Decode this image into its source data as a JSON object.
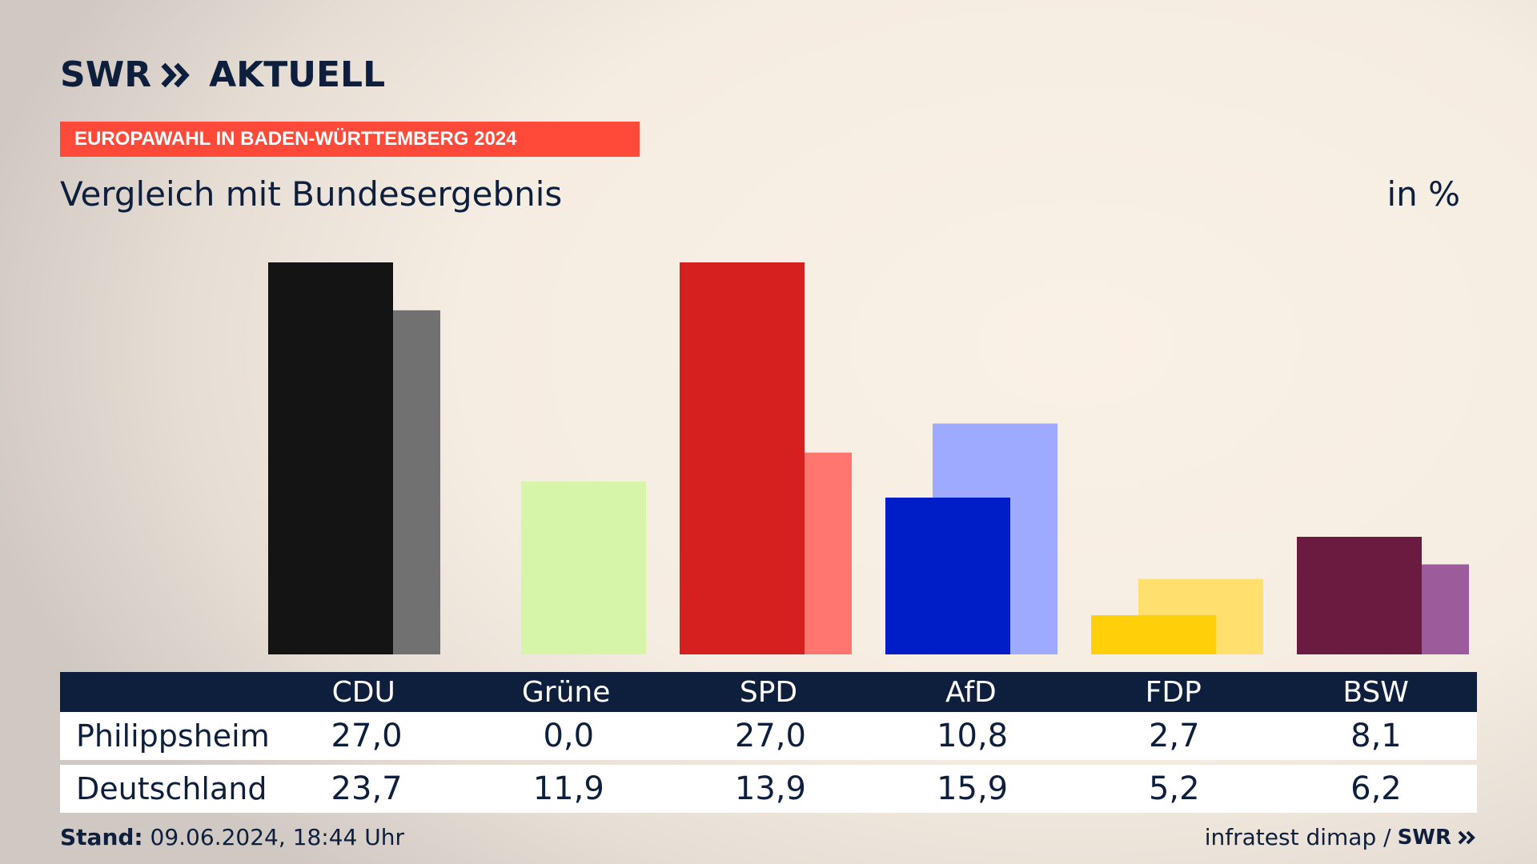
{
  "brand": {
    "swr": "SWR",
    "aktuell": "AKTUELL"
  },
  "banner": "EUROPAWAHL IN BADEN-WÜRTTEMBERG 2024",
  "subtitle": "Vergleich mit Bundesergebnis",
  "unit": "in %",
  "table": {
    "headers": [
      "CDU",
      "Grüne",
      "SPD",
      "AfD",
      "FDP",
      "BSW"
    ],
    "rows": [
      {
        "label": "Philippsheim",
        "values": [
          "27,0",
          "0,0",
          "27,0",
          "10,8",
          "2,7",
          "8,1"
        ]
      },
      {
        "label": "Deutschland",
        "values": [
          "23,7",
          "11,9",
          "13,9",
          "15,9",
          "5,2",
          "6,2"
        ]
      }
    ]
  },
  "footer": {
    "stand_label": "Stand:",
    "stand_value": "09.06.2024, 18:44 Uhr",
    "source": "infratest dimap /",
    "swr": "SWR"
  },
  "chart_data": {
    "type": "bar",
    "categories": [
      "CDU",
      "Grüne",
      "SPD",
      "AfD",
      "FDP",
      "BSW"
    ],
    "series": [
      {
        "name": "Philippsheim",
        "values": [
          27.0,
          0.0,
          27.0,
          10.8,
          2.7,
          8.1
        ],
        "colors": [
          "#141414",
          "#d6f5a8",
          "#d61f1f",
          "#001ec8",
          "#ffd00a",
          "#6b1a40"
        ]
      },
      {
        "name": "Deutschland",
        "values": [
          23.7,
          11.9,
          13.9,
          15.9,
          5.2,
          6.2
        ],
        "colors": [
          "#717171",
          "#d6f5a8",
          "#ff7670",
          "#9eaaff",
          "#ffe06e",
          "#9c5c9c"
        ]
      }
    ],
    "ylim": [
      0,
      27
    ]
  }
}
